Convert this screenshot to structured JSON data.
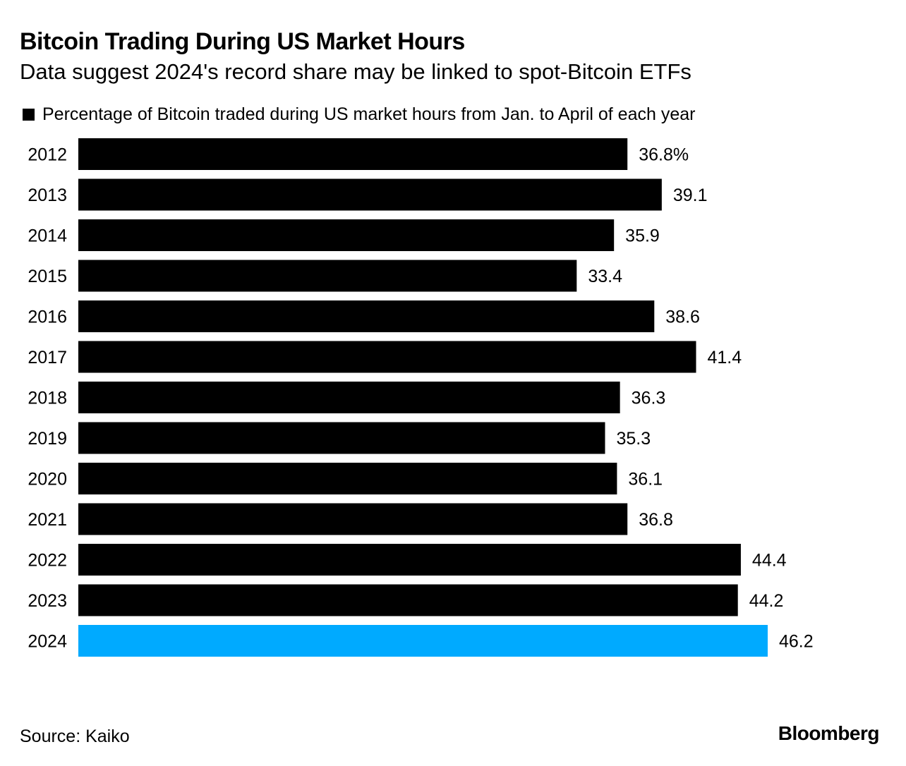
{
  "header": {
    "title": "Bitcoin Trading During US Market Hours",
    "subtitle": "Data suggest 2024's record share may be linked to spot-Bitcoin ETFs"
  },
  "legend": {
    "label": "Percentage of Bitcoin traded during US market hours from Jan. to April of each year",
    "color": "#000000"
  },
  "footer": {
    "source": "Source: Kaiko",
    "brand": "Bloomberg"
  },
  "chart_data": {
    "type": "bar",
    "orientation": "horizontal",
    "categories": [
      "2012",
      "2013",
      "2014",
      "2015",
      "2016",
      "2017",
      "2018",
      "2019",
      "2020",
      "2021",
      "2022",
      "2023",
      "2024"
    ],
    "values": [
      36.8,
      39.1,
      35.9,
      33.4,
      38.6,
      41.4,
      36.3,
      35.3,
      36.1,
      36.8,
      44.4,
      44.2,
      46.2
    ],
    "value_labels": [
      "36.8%",
      "39.1",
      "35.9",
      "33.4",
      "38.6",
      "41.4",
      "36.3",
      "35.3",
      "36.1",
      "36.8",
      "44.4",
      "44.2",
      "46.2"
    ],
    "series": [
      {
        "name": "Percentage of Bitcoin traded during US market hours from Jan. to April of each year",
        "values": [
          36.8,
          39.1,
          35.9,
          33.4,
          38.6,
          41.4,
          36.3,
          35.3,
          36.1,
          36.8,
          44.4,
          44.2,
          46.2
        ]
      }
    ],
    "xlim": [
      0,
      46.2
    ],
    "grid": false,
    "legend_position": "top-left",
    "bar_color": "#000000",
    "highlight_category": "2024",
    "highlight_color": "#00aaff"
  }
}
